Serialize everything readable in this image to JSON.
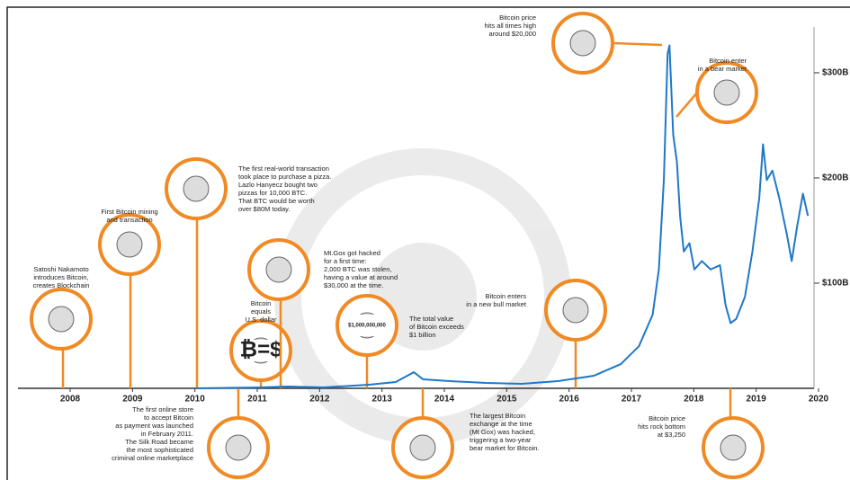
{
  "chart_data": {
    "type": "line",
    "x": [
      2010.02,
      2011.06,
      2011.49,
      2012.07,
      2012.79,
      2013.22,
      2013.44,
      2013.51,
      2013.66,
      2014.09,
      2014.67,
      2015.24,
      2015.82,
      2016.4,
      2016.83,
      2017.12,
      2017.34,
      2017.44,
      2017.52,
      2017.58,
      2017.61,
      2017.64,
      2017.67,
      2017.73,
      2017.78,
      2017.84,
      2017.93,
      2018.01,
      2018.13,
      2018.27,
      2018.42,
      2018.51,
      2018.59,
      2018.68,
      2018.82,
      2018.94,
      2019.05,
      2019.11,
      2019.17,
      2019.26,
      2019.37,
      2019.49,
      2019.57,
      2019.66,
      2019.75,
      2019.83
    ],
    "series": [
      {
        "color": "#1f78c8",
        "values": [
          0,
          0.9,
          1.7,
          0.9,
          3.4,
          6,
          13,
          15.4,
          8.5,
          6.8,
          5.1,
          4.3,
          6.8,
          12,
          23,
          40,
          70,
          113,
          198,
          318,
          326,
          284,
          241,
          215,
          164,
          130,
          138,
          113,
          121,
          113,
          117,
          79,
          62,
          66,
          87,
          130,
          181,
          232,
          198,
          207,
          181,
          147,
          121,
          155,
          185,
          164
        ]
      }
    ],
    "xlim": [
      2008,
      2020
    ],
    "xticks": [
      2008,
      2009,
      2010,
      2011,
      2012,
      2013,
      2014,
      2015,
      2016,
      2017,
      2018,
      2019,
      2020
    ],
    "ylim": [
      0,
      335
    ],
    "yticks": [
      {
        "value": 100,
        "label": "$100B"
      },
      {
        "value": 200,
        "label": "$200B"
      },
      {
        "value": 300,
        "label": "$300B"
      }
    ],
    "annotations": [
      {
        "lines": [
          "Satoshi Nakamoto",
          "introduces Bitcoin,",
          "creates Blockchain"
        ]
      },
      {
        "lines": [
          "First Bitcoin mining",
          "and transaction"
        ]
      },
      {
        "lines": [
          "The first real-world transaction",
          "took place to purchase a pizza.",
          "Lazlo Hanyecz bought two",
          "pizzas for 10,000 BTC.",
          "That BTC would be worth",
          "over $80M today."
        ]
      },
      {
        "lines": [
          "Bitcoin",
          "equals",
          "U.S. dollar"
        ],
        "label": "₿=$"
      },
      {
        "lines": [
          "Mt.Gox got hacked",
          "for a first time:",
          "2,000 BTC was stolen,",
          "having a value at around",
          "$30,000 at the time."
        ]
      },
      {
        "lines": [
          "The total value",
          "of Bitcoin exceeds",
          "$1 billion"
        ],
        "label": "$1,000,000,000"
      },
      {
        "lines": [
          "Bitcoin enters",
          "in a new bull market"
        ]
      },
      {
        "lines": [
          "Bitcoin price",
          "hits all times high",
          "around $20,000"
        ]
      },
      {
        "lines": [
          "Bitcoin enter",
          "in a bear market"
        ]
      },
      {
        "lines": [
          "The first online store",
          "to accept Bitcoin",
          "as payment was launched",
          "in February 2011.",
          "The Silk Road became",
          "the most sophisticated",
          "criminal online marketplace"
        ]
      },
      {
        "lines": [
          "The largest Bitcoin",
          "exchange at the time",
          "(Mt Gox) was hacked,",
          "triggering a two-year",
          "bear market for Bitcoin."
        ]
      },
      {
        "lines": [
          "Bitcoin price",
          "hits rock bottom",
          "at $3,250"
        ]
      }
    ]
  }
}
